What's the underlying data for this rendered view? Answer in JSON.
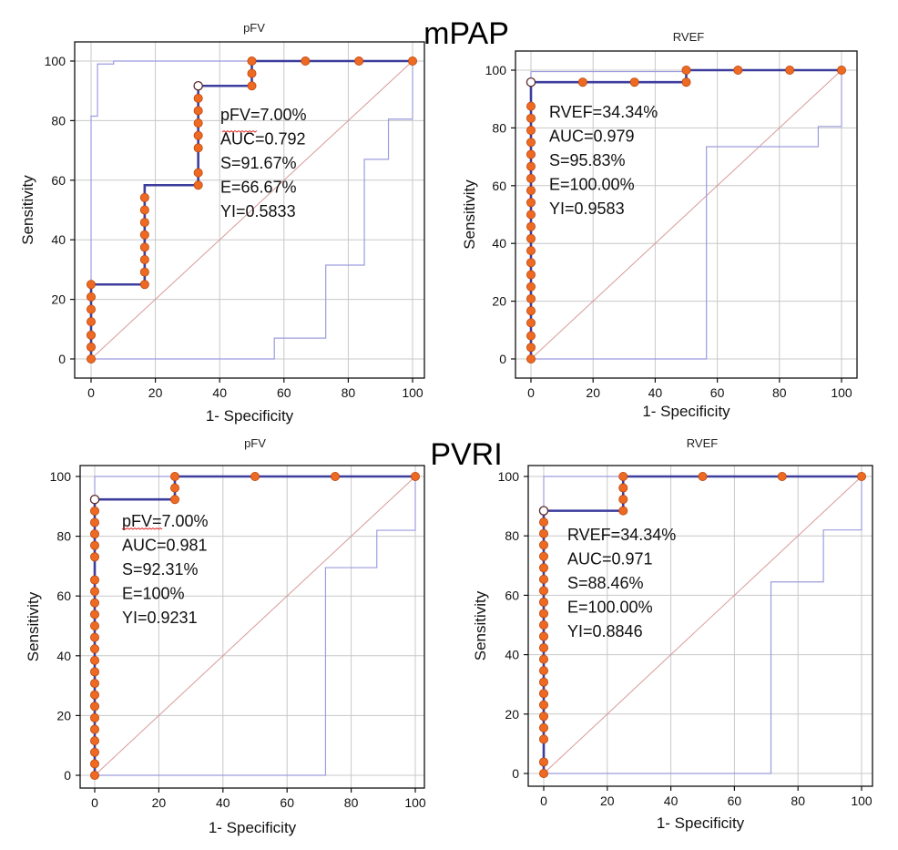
{
  "group_titles": [
    "mPAP",
    "PVRI"
  ],
  "chart_data": [
    {
      "type": "line",
      "group": "mPAP",
      "title": "pFV",
      "xlabel": "1- Specificity",
      "ylabel": "Sensitivity",
      "xlim": [
        0,
        100
      ],
      "ylim": [
        0,
        100
      ],
      "xticks": [
        0,
        20,
        40,
        60,
        80,
        100
      ],
      "yticks": [
        0,
        20,
        40,
        60,
        80,
        100
      ],
      "grid": true,
      "stats": [
        "pFV=7.00%",
        "AUC=0.792",
        "S=91.67%",
        "E=66.67%",
        "YI=0.5833"
      ],
      "reference_line": {
        "x": [
          0,
          100
        ],
        "y": [
          0,
          100
        ]
      },
      "roc_curve": {
        "x": [
          0,
          0,
          16.67,
          16.67,
          33.33,
          33.33,
          50,
          50,
          66.67,
          83.33,
          100
        ],
        "y": [
          0,
          25,
          25,
          58.33,
          58.33,
          91.67,
          91.67,
          100,
          100,
          100,
          100
        ]
      },
      "points": {
        "x": [
          0,
          0,
          0,
          0,
          0,
          0,
          0,
          16.67,
          16.67,
          16.67,
          16.67,
          16.67,
          16.67,
          16.67,
          16.67,
          33.33,
          33.33,
          33.33,
          33.33,
          33.33,
          33.33,
          33.33,
          50,
          50,
          50,
          66.67,
          83.33,
          100
        ],
        "y": [
          0,
          4,
          8,
          12.5,
          16.67,
          20.83,
          25,
          25,
          29.17,
          33.33,
          37.5,
          41.67,
          45.83,
          50,
          54.17,
          58.33,
          62.5,
          70.83,
          75,
          79.17,
          83.33,
          87.5,
          91.67,
          95.83,
          100,
          100,
          100,
          100
        ]
      },
      "optimal_point": {
        "x": 33.33,
        "y": 91.67
      },
      "ci_upper": {
        "x": [
          0,
          0,
          2,
          2,
          7,
          7,
          100
        ],
        "y": [
          0,
          81.5,
          81.5,
          99,
          99,
          100,
          100
        ]
      },
      "ci_lower": {
        "x": [
          0,
          57,
          57,
          73,
          73,
          85,
          85,
          92.5,
          92.5,
          100,
          100
        ],
        "y": [
          0,
          0,
          7,
          7,
          31.5,
          31.5,
          67,
          67,
          80.5,
          80.5,
          100
        ]
      }
    },
    {
      "type": "line",
      "group": "mPAP",
      "title": "RVEF",
      "xlabel": "1- Specificity",
      "ylabel": "Sensitivity",
      "xlim": [
        0,
        100
      ],
      "ylim": [
        0,
        100
      ],
      "xticks": [
        0,
        20,
        40,
        60,
        80,
        100
      ],
      "yticks": [
        0,
        20,
        40,
        60,
        80,
        100
      ],
      "grid": true,
      "stats": [
        "RVEF=34.34%",
        "AUC=0.979",
        "S=95.83%",
        "E=100.00%",
        "YI=0.9583"
      ],
      "reference_line": {
        "x": [
          0,
          100
        ],
        "y": [
          0,
          100
        ]
      },
      "roc_curve": {
        "x": [
          0,
          0,
          50,
          50,
          100
        ],
        "y": [
          0,
          95.83,
          95.83,
          100,
          100
        ]
      },
      "points": {
        "x": [
          0,
          0,
          0,
          0,
          0,
          0,
          0,
          0,
          0,
          0,
          0,
          0,
          0,
          0,
          0,
          0,
          0,
          0,
          0,
          0,
          0,
          0,
          16.67,
          33.33,
          50,
          50,
          66.67,
          83.33,
          100
        ],
        "y": [
          0,
          4,
          8,
          12.5,
          16.67,
          20.83,
          25,
          29.17,
          33.33,
          37.5,
          41.67,
          45.83,
          50,
          54.17,
          58.33,
          62.5,
          66.67,
          70.83,
          75,
          79.17,
          83.33,
          87.5,
          95.83,
          95.83,
          95.83,
          100,
          100,
          100,
          100
        ]
      },
      "optimal_point": {
        "x": 0,
        "y": 95.83
      },
      "ci_upper": {
        "x": [
          0,
          0,
          49,
          49,
          100
        ],
        "y": [
          0,
          99.5,
          99.5,
          100,
          100
        ]
      },
      "ci_lower": {
        "x": [
          0,
          56.5,
          56.5,
          92.5,
          92.5,
          100,
          100
        ],
        "y": [
          0,
          0,
          73.5,
          73.5,
          80.5,
          80.5,
          100
        ]
      }
    },
    {
      "type": "line",
      "group": "PVRI",
      "title": "pFV",
      "xlabel": "1- Specificity",
      "ylabel": "Sensitivity",
      "xlim": [
        0,
        100
      ],
      "ylim": [
        0,
        100
      ],
      "xticks": [
        0,
        20,
        40,
        60,
        80,
        100
      ],
      "yticks": [
        0,
        20,
        40,
        60,
        80,
        100
      ],
      "grid": true,
      "stats": [
        "pFV=7.00%",
        "AUC=0.981",
        "S=92.31%",
        "E=100%",
        "YI=0.9231"
      ],
      "reference_line": {
        "x": [
          0,
          100
        ],
        "y": [
          0,
          100
        ]
      },
      "roc_curve": {
        "x": [
          0,
          0,
          25,
          25,
          50,
          75,
          100
        ],
        "y": [
          0,
          92.31,
          92.31,
          100,
          100,
          100,
          100
        ]
      },
      "points": {
        "x": [
          0,
          0,
          0,
          0,
          0,
          0,
          0,
          0,
          0,
          0,
          0,
          0,
          0,
          0,
          0,
          0,
          0,
          0,
          0,
          0,
          0,
          0,
          0,
          0,
          0,
          25,
          25,
          25,
          50,
          75,
          100
        ],
        "y": [
          0,
          3.85,
          7.69,
          11.54,
          15.38,
          19.23,
          23.08,
          26.92,
          30.77,
          34.62,
          38.46,
          42.31,
          46.15,
          50,
          53.85,
          57.69,
          61.54,
          65.38,
          73.08,
          76.92,
          80.77,
          84.62,
          88.46,
          92.31,
          92.31,
          92.31,
          96.15,
          100,
          100,
          100,
          100
        ]
      },
      "optimal_point": {
        "x": 0,
        "y": 92.31
      },
      "ci_upper": {
        "x": [
          0,
          0,
          100
        ],
        "y": [
          0,
          100,
          100
        ]
      },
      "ci_lower": {
        "x": [
          0,
          72,
          72,
          88,
          88,
          100,
          100
        ],
        "y": [
          0,
          0,
          69.5,
          69.5,
          82,
          82,
          100
        ]
      }
    },
    {
      "type": "line",
      "group": "PVRI",
      "title": "RVEF",
      "xlabel": "1- Specificity",
      "ylabel": "Sensitivity",
      "xlim": [
        0,
        100
      ],
      "ylim": [
        0,
        100
      ],
      "xticks": [
        0,
        20,
        40,
        60,
        80,
        100
      ],
      "yticks": [
        0,
        20,
        40,
        60,
        80,
        100
      ],
      "grid": true,
      "stats": [
        "RVEF=34.34%",
        "AUC=0.971",
        "S=88.46%",
        "E=100.00%",
        "YI=0.8846"
      ],
      "reference_line": {
        "x": [
          0,
          100
        ],
        "y": [
          0,
          100
        ]
      },
      "roc_curve": {
        "x": [
          0,
          0,
          25,
          25,
          50,
          75,
          100
        ],
        "y": [
          0,
          88.46,
          88.46,
          100,
          100,
          100,
          100
        ]
      },
      "points": {
        "x": [
          0,
          0,
          0,
          0,
          0,
          0,
          0,
          0,
          0,
          0,
          0,
          0,
          0,
          0,
          0,
          0,
          0,
          0,
          0,
          0,
          0,
          0,
          0,
          0,
          25,
          25,
          25,
          25,
          50,
          75,
          100
        ],
        "y": [
          0,
          3.85,
          11.54,
          15.38,
          19.23,
          23.08,
          26.92,
          30.77,
          34.62,
          38.46,
          42.31,
          46.15,
          50,
          53.85,
          57.69,
          61.54,
          65.38,
          69.23,
          73.08,
          76.92,
          80.77,
          84.62,
          88.46,
          88.46,
          88.46,
          92.31,
          96.15,
          100,
          100,
          100,
          100
        ]
      },
      "optimal_point": {
        "x": 0,
        "y": 88.46
      },
      "ci_upper": {
        "x": [
          0,
          0,
          100
        ],
        "y": [
          0,
          100,
          100
        ]
      },
      "ci_lower": {
        "x": [
          0,
          71.5,
          71.5,
          88,
          88,
          100,
          100
        ],
        "y": [
          0,
          0,
          64.5,
          64.5,
          82,
          82,
          100
        ]
      }
    }
  ]
}
